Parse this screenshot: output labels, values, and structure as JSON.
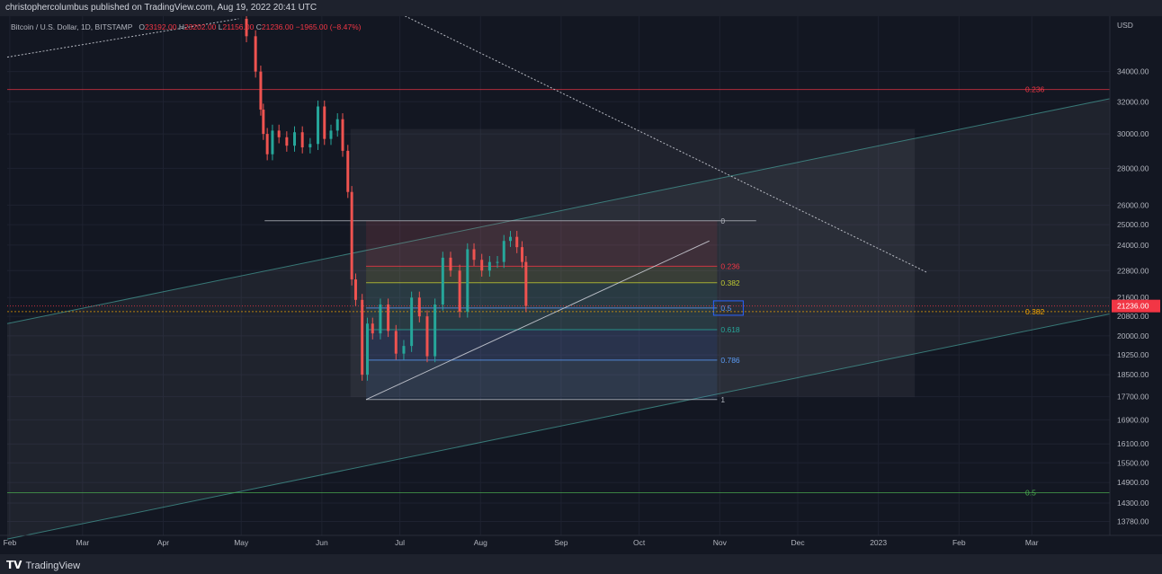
{
  "header": {
    "publisher": "christophercolumbus published on TradingView.com, Aug 19, 2022 20:41 UTC"
  },
  "legend": {
    "symbol": "Bitcoin / U.S. Dollar, 1D, BITSTAMP",
    "o_label": "O",
    "o": "23192.00",
    "h_label": "H",
    "h": "23202.00",
    "l_label": "L",
    "l": "21156.00",
    "c_label": "C",
    "c": "21236.00",
    "change": "−1965.00 (−8.47%)"
  },
  "footer": {
    "brand": "TradingView",
    "logo_icon": "tradingview-logo-icon"
  },
  "colors": {
    "background": "#131722",
    "up": "#26a69a",
    "down": "#ef5350",
    "grid": "#1e2230",
    "price_tag": "#f23645"
  },
  "chart_data": {
    "type": "candlestick",
    "axis_currency": "USD",
    "current_price": "21236.00",
    "ylim": [
      13400,
      38000
    ],
    "y_scale": "log",
    "y_ticks": [
      34000,
      32000,
      30000,
      28000,
      26000,
      25000,
      24000,
      22800,
      21600,
      20800,
      20000,
      19250,
      18500,
      17700,
      16900,
      16100,
      15500,
      14900,
      14300,
      13780
    ],
    "y_tick_labels": [
      "34000.00",
      "32000.00",
      "30000.00",
      "28000.00",
      "26000.00",
      "25000.00",
      "24000.00",
      "22800.00",
      "21600.00",
      "20800.00",
      "20000.00",
      "19250.00",
      "18500.00",
      "17700.00",
      "16900.00",
      "16100.00",
      "15500.00",
      "14900.00",
      "14300.00",
      "13780.00"
    ],
    "x_range": [
      "2022-01-31",
      "2023-03-31"
    ],
    "x_ticks": [
      {
        "date": "2022-02-01",
        "label": "Feb"
      },
      {
        "date": "2022-03-01",
        "label": "Mar"
      },
      {
        "date": "2022-04-01",
        "label": "Apr"
      },
      {
        "date": "2022-05-01",
        "label": "May"
      },
      {
        "date": "2022-06-01",
        "label": "Jun"
      },
      {
        "date": "2022-07-01",
        "label": "Jul"
      },
      {
        "date": "2022-08-01",
        "label": "Aug"
      },
      {
        "date": "2022-09-01",
        "label": "Sep"
      },
      {
        "date": "2022-10-01",
        "label": "Oct"
      },
      {
        "date": "2022-11-01",
        "label": "Nov"
      },
      {
        "date": "2022-12-01",
        "label": "Dec"
      },
      {
        "date": "2023-01-01",
        "label": "2023"
      },
      {
        "date": "2023-02-01",
        "label": "Feb"
      },
      {
        "date": "2023-03-01",
        "label": "Mar"
      }
    ],
    "price_path": [
      {
        "date": "2022-05-01",
        "close": 37800
      },
      {
        "date": "2022-05-05",
        "close": 36500
      },
      {
        "date": "2022-05-08",
        "close": 34000
      },
      {
        "date": "2022-05-09",
        "close": 31500
      },
      {
        "date": "2022-05-10",
        "close": 30000
      },
      {
        "date": "2022-05-12",
        "close": 28800
      },
      {
        "date": "2022-05-14",
        "close": 30200
      },
      {
        "date": "2022-05-17",
        "close": 29800
      },
      {
        "date": "2022-05-20",
        "close": 29300
      },
      {
        "date": "2022-05-23",
        "close": 30100
      },
      {
        "date": "2022-05-26",
        "close": 29200
      },
      {
        "date": "2022-05-29",
        "close": 29400
      },
      {
        "date": "2022-06-01",
        "close": 31700
      },
      {
        "date": "2022-06-03",
        "close": 29700
      },
      {
        "date": "2022-06-06",
        "close": 30200
      },
      {
        "date": "2022-06-08",
        "close": 30900
      },
      {
        "date": "2022-06-10",
        "close": 29000
      },
      {
        "date": "2022-06-12",
        "close": 26700
      },
      {
        "date": "2022-06-13",
        "close": 22400
      },
      {
        "date": "2022-06-15",
        "close": 21500
      },
      {
        "date": "2022-06-18",
        "close": 18500
      },
      {
        "date": "2022-06-19",
        "close": 20500
      },
      {
        "date": "2022-06-22",
        "close": 20100
      },
      {
        "date": "2022-06-25",
        "close": 21300
      },
      {
        "date": "2022-06-28",
        "close": 20200
      },
      {
        "date": "2022-07-01",
        "close": 19300
      },
      {
        "date": "2022-07-04",
        "close": 19600
      },
      {
        "date": "2022-07-07",
        "close": 21600
      },
      {
        "date": "2022-07-10",
        "close": 20800
      },
      {
        "date": "2022-07-13",
        "close": 19200
      },
      {
        "date": "2022-07-16",
        "close": 21300
      },
      {
        "date": "2022-07-19",
        "close": 23400
      },
      {
        "date": "2022-07-22",
        "close": 22800
      },
      {
        "date": "2022-07-26",
        "close": 21000
      },
      {
        "date": "2022-07-28",
        "close": 23800
      },
      {
        "date": "2022-07-31",
        "close": 23300
      },
      {
        "date": "2022-08-03",
        "close": 22800
      },
      {
        "date": "2022-08-06",
        "close": 23200
      },
      {
        "date": "2022-08-09",
        "close": 23200
      },
      {
        "date": "2022-08-11",
        "close": 24200
      },
      {
        "date": "2022-08-14",
        "close": 24400
      },
      {
        "date": "2022-08-16",
        "close": 23900
      },
      {
        "date": "2022-08-18",
        "close": 23200
      },
      {
        "date": "2022-08-19",
        "close": 21236
      }
    ],
    "fib_retracement": {
      "start": {
        "date": "2022-06-18",
        "price": 17600
      },
      "end": {
        "date": "2022-08-15",
        "price": 25200
      },
      "levels": [
        {
          "ratio": "0",
          "price": 25200,
          "color": "#b2b5be"
        },
        {
          "ratio": "0.236",
          "price": 23000,
          "color": "#f23645"
        },
        {
          "ratio": "0.382",
          "price": 22250,
          "color": "#c0ca33"
        },
        {
          "ratio": "0.5",
          "price": 21150,
          "color": "#5b9cf6"
        },
        {
          "ratio": "0.618",
          "price": 20250,
          "color": "#26a69a"
        },
        {
          "ratio": "0.786",
          "price": 19050,
          "color": "#5b9cf6"
        },
        {
          "ratio": "1",
          "price": 17600,
          "color": "#b2b5be"
        }
      ]
    },
    "horizontal_levels": [
      {
        "label": "0.236",
        "price": 32800,
        "color": "#f23645"
      },
      {
        "label": "0.382",
        "price": 21000,
        "color": "#f7a600"
      },
      {
        "label": "0.5",
        "price": 14600,
        "color": "#4caf50"
      }
    ],
    "trend_lines": [
      {
        "from": {
          "date": "2022-06-18",
          "price": 17600
        },
        "to": {
          "date": "2022-10-28",
          "price": 24200
        },
        "color": "#d1d4dc",
        "style": "solid"
      },
      {
        "from": {
          "date": "2022-06-28",
          "price": 38500
        },
        "to": {
          "date": "2023-01-20",
          "price": 22700
        },
        "color": "#d1d4dc",
        "style": "dotted"
      },
      {
        "from": {
          "date": "2022-01-31",
          "price": 35000
        },
        "to": {
          "date": "2022-04-30",
          "price": 37800
        },
        "color": "#d1d4dc",
        "style": "dotted"
      }
    ],
    "channel": {
      "upper": {
        "from": {
          "date": "2022-01-31",
          "price": 20500
        },
        "to": {
          "date": "2023-03-31",
          "price": 32200
        }
      },
      "lower": {
        "from": {
          "date": "2022-01-31",
          "price": 13300
        },
        "to": {
          "date": "2023-03-31",
          "price": 20900
        }
      },
      "color": "#4db6ac"
    },
    "projection_box": {
      "from": {
        "date": "2022-06-12",
        "price": 17700
      },
      "to": {
        "date": "2023-01-15",
        "price": 30300
      }
    }
  }
}
